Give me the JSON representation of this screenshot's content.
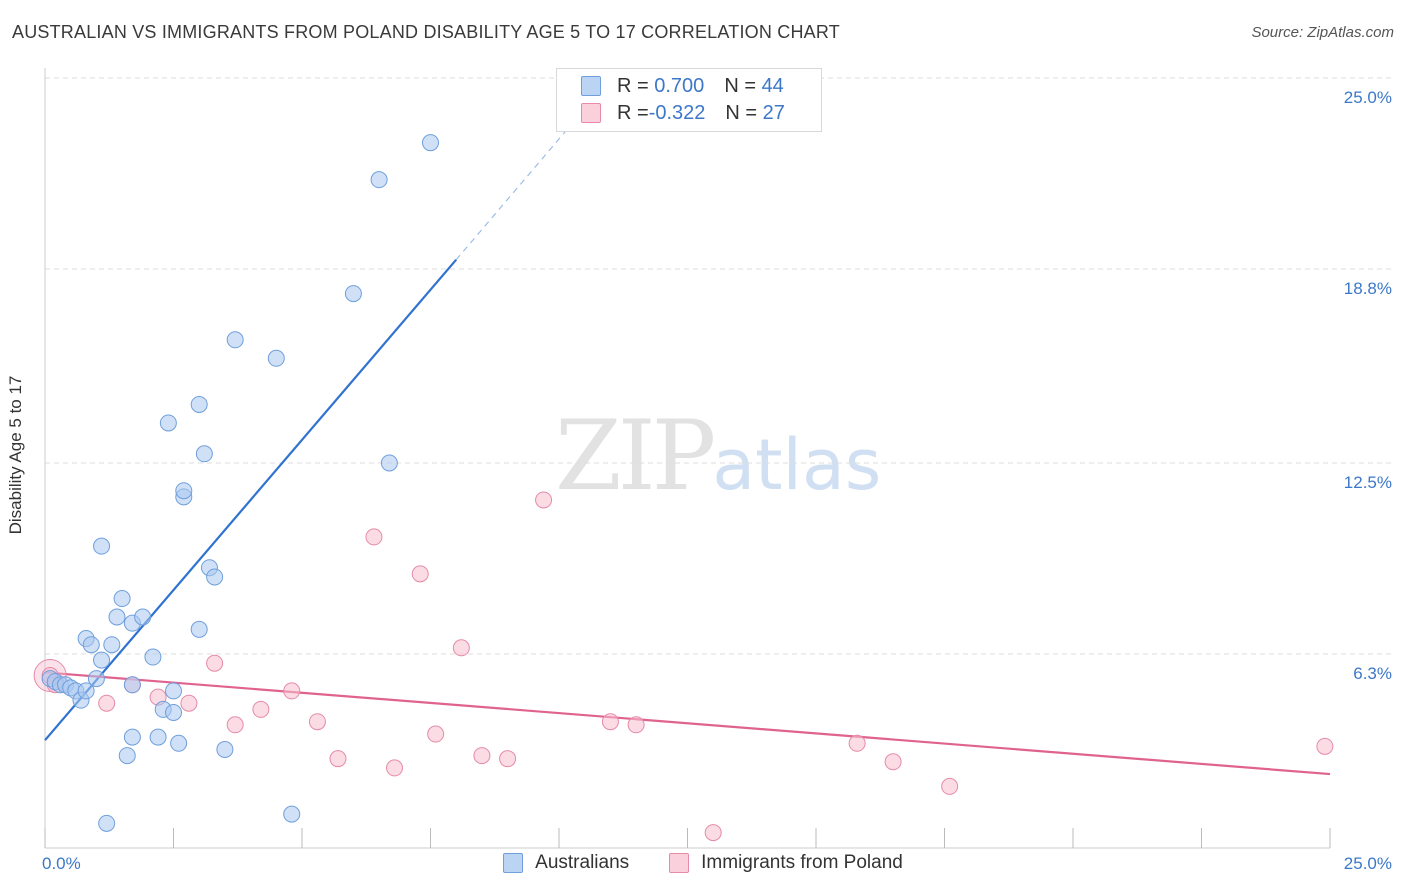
{
  "header": {
    "title": "AUSTRALIAN VS IMMIGRANTS FROM POLAND DISABILITY AGE 5 TO 17 CORRELATION CHART",
    "source": "Source: ZipAtlas.com"
  },
  "watermark": {
    "zip": "ZIP",
    "atlas": "atlas"
  },
  "legend": {
    "rows": [
      {
        "r_label": "R = ",
        "r_value": "0.700",
        "n_label": "N = ",
        "n_value": "44"
      },
      {
        "r_label": "R = ",
        "r_value": "-0.322",
        "n_label": "N = ",
        "n_value": "27"
      }
    ]
  },
  "bottom_legend": {
    "a": "Australians",
    "b": "Immigrants from Poland"
  },
  "colors": {
    "blue_fill": "#a9c8f0",
    "blue_stroke": "#6f9fdc",
    "blue_line": "#2f72cf",
    "pink_fill": "#f7bfd0",
    "pink_stroke": "#e68aa8",
    "pink_line": "#e0628e",
    "accent_text": "#3c78c8",
    "grid": "#dddddd"
  },
  "chart_data": {
    "type": "scatter",
    "title": "AUSTRALIAN VS IMMIGRANTS FROM POLAND DISABILITY AGE 5 TO 17 CORRELATION CHART",
    "xlabel": "",
    "ylabel": "Disability Age 5 to 17",
    "xlim": [
      0,
      25
    ],
    "ylim": [
      0,
      25
    ],
    "x_tick_labels": [
      "0.0%",
      "25.0%"
    ],
    "y_ticks": [
      6.3,
      12.5,
      18.8,
      25.0
    ],
    "y_tick_labels": [
      "6.3%",
      "12.5%",
      "18.8%",
      "25.0%"
    ],
    "grid": true,
    "series": [
      {
        "name": "Australians",
        "color": "#a9c8f0",
        "R": 0.7,
        "N": 44,
        "trend": {
          "x": [
            0,
            8.0
          ],
          "y": [
            3.5,
            19.1
          ],
          "dashed_extension_to": [
            10.5,
            24.0
          ]
        },
        "points": [
          [
            0.1,
            5.5
          ],
          [
            0.2,
            5.4
          ],
          [
            0.3,
            5.3
          ],
          [
            0.4,
            5.3
          ],
          [
            0.5,
            5.2
          ],
          [
            0.6,
            5.1
          ],
          [
            0.7,
            4.8
          ],
          [
            0.8,
            5.1
          ],
          [
            1.0,
            5.5
          ],
          [
            0.8,
            6.8
          ],
          [
            0.9,
            6.6
          ],
          [
            1.1,
            9.8
          ],
          [
            1.1,
            6.1
          ],
          [
            1.3,
            6.6
          ],
          [
            1.4,
            7.5
          ],
          [
            1.5,
            8.1
          ],
          [
            1.7,
            7.3
          ],
          [
            1.9,
            7.5
          ],
          [
            2.1,
            6.2
          ],
          [
            1.7,
            5.3
          ],
          [
            2.3,
            4.5
          ],
          [
            2.5,
            5.1
          ],
          [
            2.5,
            4.4
          ],
          [
            2.2,
            3.6
          ],
          [
            1.7,
            3.6
          ],
          [
            2.6,
            3.4
          ],
          [
            1.6,
            3.0
          ],
          [
            3.0,
            7.1
          ],
          [
            3.2,
            9.1
          ],
          [
            3.3,
            8.8
          ],
          [
            2.7,
            11.4
          ],
          [
            2.7,
            11.6
          ],
          [
            3.1,
            12.8
          ],
          [
            3.0,
            14.4
          ],
          [
            2.4,
            13.8
          ],
          [
            3.7,
            16.5
          ],
          [
            4.5,
            15.9
          ],
          [
            3.5,
            3.2
          ],
          [
            6.0,
            18.0
          ],
          [
            6.5,
            21.7
          ],
          [
            7.5,
            22.9
          ],
          [
            6.7,
            12.5
          ],
          [
            4.8,
            1.1
          ],
          [
            1.2,
            0.8
          ]
        ]
      },
      {
        "name": "Immigrants from Poland",
        "color": "#f7bfd0",
        "R": -0.322,
        "N": 27,
        "trend": {
          "x": [
            0,
            25
          ],
          "y": [
            5.7,
            2.4
          ]
        },
        "points": [
          [
            0.1,
            5.6
          ],
          [
            0.2,
            5.3
          ],
          [
            1.2,
            4.7
          ],
          [
            1.7,
            5.3
          ],
          [
            2.2,
            4.9
          ],
          [
            2.8,
            4.7
          ],
          [
            3.3,
            6.0
          ],
          [
            3.7,
            4.0
          ],
          [
            4.2,
            4.5
          ],
          [
            4.8,
            5.1
          ],
          [
            5.3,
            4.1
          ],
          [
            5.7,
            2.9
          ],
          [
            6.4,
            10.1
          ],
          [
            6.8,
            2.6
          ],
          [
            7.3,
            8.9
          ],
          [
            7.6,
            3.7
          ],
          [
            8.1,
            6.5
          ],
          [
            8.5,
            3.0
          ],
          [
            9.0,
            2.9
          ],
          [
            9.7,
            11.3
          ],
          [
            11.0,
            4.1
          ],
          [
            11.5,
            4.0
          ],
          [
            13.0,
            0.5
          ],
          [
            15.8,
            3.4
          ],
          [
            16.5,
            2.8
          ],
          [
            17.6,
            2.0
          ],
          [
            24.9,
            3.3
          ]
        ]
      }
    ]
  }
}
